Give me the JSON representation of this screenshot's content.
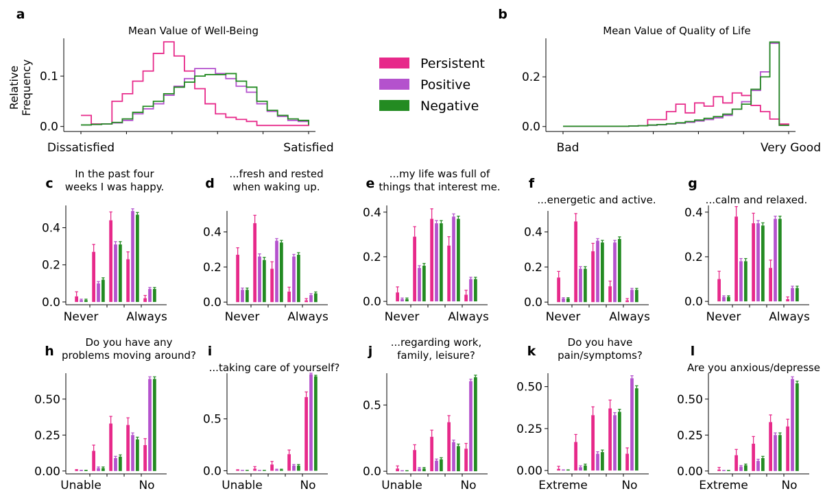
{
  "colors": {
    "Persistent": "#e7298a",
    "Positive": "#b452cd",
    "Negative": "#238b22"
  },
  "legend": {
    "items": [
      "Persistent",
      "Positive",
      "Negative"
    ]
  },
  "chart_data": [
    {
      "id": "a",
      "type": "line",
      "subtype": "step-histogram",
      "title": "Mean Value of Well-Being",
      "ylabel": "Relative\nFrequency",
      "xlabels": [
        "Dissatisfied",
        "Satisfied"
      ],
      "yticks": [
        "0.0",
        "0.1"
      ],
      "ylim": [
        -0.01,
        0.175
      ],
      "series": [
        {
          "name": "Persistent",
          "values": [
            0.022,
            0.005,
            0.005,
            0.05,
            0.065,
            0.09,
            0.11,
            0.145,
            0.168,
            0.14,
            0.11,
            0.075,
            0.045,
            0.025,
            0.018,
            0.014,
            0.01,
            0.002,
            0.002,
            0.002,
            0.002,
            0.002
          ]
        },
        {
          "name": "Positive",
          "values": [
            0.003,
            0.004,
            0.005,
            0.007,
            0.012,
            0.025,
            0.035,
            0.045,
            0.062,
            0.08,
            0.095,
            0.115,
            0.115,
            0.105,
            0.095,
            0.08,
            0.068,
            0.045,
            0.03,
            0.02,
            0.012,
            0.01
          ]
        },
        {
          "name": "Negative",
          "values": [
            0.003,
            0.004,
            0.005,
            0.008,
            0.015,
            0.028,
            0.04,
            0.05,
            0.065,
            0.078,
            0.088,
            0.1,
            0.103,
            0.103,
            0.105,
            0.09,
            0.078,
            0.05,
            0.032,
            0.022,
            0.015,
            0.012
          ]
        }
      ]
    },
    {
      "id": "b",
      "type": "line",
      "subtype": "step-histogram",
      "title": "Mean Value of Quality of Life",
      "xlabels": [
        "Bad",
        "Very Good"
      ],
      "yticks": [
        "0.0",
        "0.2"
      ],
      "ylim": [
        -0.02,
        0.355
      ],
      "series": [
        {
          "name": "Persistent",
          "values": [
            0.001,
            0.001,
            0.001,
            0.001,
            0.001,
            0.001,
            0.001,
            0.002,
            0.003,
            0.028,
            0.028,
            0.06,
            0.09,
            0.055,
            0.095,
            0.082,
            0.12,
            0.095,
            0.135,
            0.125,
            0.085,
            0.06,
            0.03,
            0.01
          ]
        },
        {
          "name": "Positive",
          "values": [
            0.001,
            0.001,
            0.001,
            0.001,
            0.001,
            0.001,
            0.001,
            0.002,
            0.003,
            0.005,
            0.007,
            0.01,
            0.013,
            0.017,
            0.022,
            0.028,
            0.035,
            0.045,
            0.07,
            0.1,
            0.145,
            0.22,
            0.335,
            0.005
          ]
        },
        {
          "name": "Negative",
          "values": [
            0.001,
            0.001,
            0.001,
            0.001,
            0.001,
            0.001,
            0.001,
            0.002,
            0.003,
            0.006,
            0.008,
            0.011,
            0.015,
            0.02,
            0.026,
            0.033,
            0.04,
            0.05,
            0.07,
            0.09,
            0.15,
            0.2,
            0.34,
            0.005
          ]
        }
      ]
    },
    {
      "id": "c",
      "type": "bar",
      "title": "In the past four\nweeks I was happy.",
      "xlabels": [
        "Never",
        "Always"
      ],
      "yticks": [
        0,
        0.2,
        0.4
      ],
      "ylim": [
        -0.015,
        0.52
      ],
      "series": [
        {
          "name": "Persistent",
          "values": [
            0.03,
            0.27,
            0.44,
            0.23,
            0.02
          ],
          "errors": [
            0.025,
            0.04,
            0.045,
            0.04,
            0.015
          ]
        },
        {
          "name": "Positive",
          "values": [
            0.01,
            0.1,
            0.31,
            0.49,
            0.07
          ],
          "errors": [
            0.005,
            0.01,
            0.015,
            0.012,
            0.008
          ]
        },
        {
          "name": "Negative",
          "values": [
            0.01,
            0.12,
            0.31,
            0.47,
            0.07
          ],
          "errors": [
            0.005,
            0.01,
            0.015,
            0.012,
            0.008
          ]
        }
      ]
    },
    {
      "id": "d",
      "type": "bar",
      "title": "...fresh and rested\nwhen waking up.",
      "xlabels": [
        "Never",
        "Always"
      ],
      "yticks": [
        0,
        0.2,
        0.4
      ],
      "ylim": [
        -0.015,
        0.52
      ],
      "series": [
        {
          "name": "Persistent",
          "values": [
            0.27,
            0.45,
            0.19,
            0.06,
            0.01
          ],
          "errors": [
            0.04,
            0.045,
            0.04,
            0.025,
            0.01
          ]
        },
        {
          "name": "Positive",
          "values": [
            0.07,
            0.26,
            0.35,
            0.26,
            0.04
          ],
          "errors": [
            0.01,
            0.015,
            0.012,
            0.012,
            0.008
          ]
        },
        {
          "name": "Negative",
          "values": [
            0.07,
            0.24,
            0.34,
            0.27,
            0.05
          ],
          "errors": [
            0.01,
            0.015,
            0.012,
            0.012,
            0.008
          ]
        }
      ]
    },
    {
      "id": "e",
      "type": "bar",
      "title": "...my life was full of\nthings that interest me.",
      "xlabels": [
        "Never",
        "Always"
      ],
      "yticks": [
        0,
        0.2,
        0.4
      ],
      "ylim": [
        -0.015,
        0.43
      ],
      "series": [
        {
          "name": "Persistent",
          "values": [
            0.04,
            0.29,
            0.37,
            0.25,
            0.03
          ],
          "errors": [
            0.025,
            0.045,
            0.045,
            0.04,
            0.02
          ]
        },
        {
          "name": "Positive",
          "values": [
            0.01,
            0.15,
            0.35,
            0.38,
            0.1
          ],
          "errors": [
            0.005,
            0.01,
            0.012,
            0.012,
            0.008
          ]
        },
        {
          "name": "Negative",
          "values": [
            0.01,
            0.16,
            0.35,
            0.37,
            0.1
          ],
          "errors": [
            0.005,
            0.01,
            0.012,
            0.012,
            0.008
          ]
        }
      ]
    },
    {
      "id": "f",
      "type": "bar",
      "title": "...energetic and active.",
      "xlabels": [
        "Never",
        "Always"
      ],
      "yticks": [
        0,
        0.2,
        0.4
      ],
      "ylim": [
        -0.015,
        0.52
      ],
      "series": [
        {
          "name": "Persistent",
          "values": [
            0.14,
            0.46,
            0.29,
            0.09,
            0.01
          ],
          "errors": [
            0.035,
            0.045,
            0.045,
            0.03,
            0.01
          ]
        },
        {
          "name": "Positive",
          "values": [
            0.02,
            0.19,
            0.35,
            0.34,
            0.07
          ],
          "errors": [
            0.005,
            0.012,
            0.012,
            0.012,
            0.008
          ]
        },
        {
          "name": "Negative",
          "values": [
            0.02,
            0.19,
            0.34,
            0.36,
            0.07
          ],
          "errors": [
            0.005,
            0.012,
            0.012,
            0.012,
            0.008
          ]
        }
      ]
    },
    {
      "id": "g",
      "type": "bar",
      "title": "...calm and relaxed.",
      "xlabels": [
        "Never",
        "Always"
      ],
      "yticks": [
        0,
        0.2,
        0.4
      ],
      "ylim": [
        -0.015,
        0.43
      ],
      "series": [
        {
          "name": "Persistent",
          "values": [
            0.1,
            0.38,
            0.35,
            0.15,
            0.01
          ],
          "errors": [
            0.035,
            0.045,
            0.045,
            0.035,
            0.01
          ]
        },
        {
          "name": "Positive",
          "values": [
            0.02,
            0.18,
            0.35,
            0.37,
            0.06
          ],
          "errors": [
            0.005,
            0.012,
            0.012,
            0.012,
            0.008
          ]
        },
        {
          "name": "Negative",
          "values": [
            0.02,
            0.18,
            0.34,
            0.37,
            0.06
          ],
          "errors": [
            0.005,
            0.012,
            0.012,
            0.012,
            0.008
          ]
        }
      ]
    },
    {
      "id": "h",
      "type": "bar",
      "title": "Do you have any\nproblems moving around?",
      "xlabels": [
        "Unable",
        "No"
      ],
      "yticks": [
        "0.00",
        "0.25",
        "0.50"
      ],
      "ylim": [
        -0.02,
        0.68
      ],
      "series": [
        {
          "name": "Persistent",
          "values": [
            0.0,
            0.14,
            0.33,
            0.32,
            0.18
          ],
          "errors": [
            0.01,
            0.04,
            0.05,
            0.05,
            0.045
          ]
        },
        {
          "name": "Positive",
          "values": [
            0.0,
            0.02,
            0.09,
            0.25,
            0.64
          ],
          "errors": [
            0.005,
            0.008,
            0.012,
            0.015,
            0.015
          ]
        },
        {
          "name": "Negative",
          "values": [
            0.0,
            0.02,
            0.1,
            0.22,
            0.64
          ],
          "errors": [
            0.005,
            0.008,
            0.012,
            0.015,
            0.015
          ]
        }
      ]
    },
    {
      "id": "i",
      "type": "bar",
      "title": "...taking care of yourself?",
      "xlabels": [
        "Unable",
        "No"
      ],
      "yticks": [
        "0.0",
        "0.5"
      ],
      "ylim": [
        -0.03,
        0.94
      ],
      "series": [
        {
          "name": "Persistent",
          "values": [
            0.0,
            0.02,
            0.06,
            0.16,
            0.71
          ],
          "errors": [
            0.01,
            0.02,
            0.03,
            0.04,
            0.05
          ]
        },
        {
          "name": "Positive",
          "values": [
            0.0,
            0.0,
            0.01,
            0.05,
            0.93
          ],
          "errors": [
            0.003,
            0.003,
            0.005,
            0.01,
            0.01
          ]
        },
        {
          "name": "Negative",
          "values": [
            0.0,
            0.0,
            0.01,
            0.05,
            0.91
          ],
          "errors": [
            0.003,
            0.003,
            0.005,
            0.01,
            0.01
          ]
        }
      ]
    },
    {
      "id": "j",
      "type": "bar",
      "title": "...regarding work,\nfamily, leisure?",
      "xlabels": [
        "Unable",
        "No"
      ],
      "yticks": [
        "0.0",
        "0.5"
      ],
      "ylim": [
        -0.02,
        0.74
      ],
      "series": [
        {
          "name": "Persistent",
          "values": [
            0.02,
            0.16,
            0.26,
            0.37,
            0.17
          ],
          "errors": [
            0.02,
            0.04,
            0.05,
            0.05,
            0.04
          ]
        },
        {
          "name": "Positive",
          "values": [
            0.0,
            0.02,
            0.08,
            0.22,
            0.68
          ],
          "errors": [
            0.004,
            0.008,
            0.012,
            0.015,
            0.015
          ]
        },
        {
          "name": "Negative",
          "values": [
            0.0,
            0.02,
            0.09,
            0.19,
            0.71
          ],
          "errors": [
            0.004,
            0.008,
            0.012,
            0.015,
            0.015
          ]
        }
      ]
    },
    {
      "id": "k",
      "type": "bar",
      "title": "Do you have\npain/symptoms?",
      "xlabels": [
        "Extreme",
        "No"
      ],
      "yticks": [
        "0.00",
        "0.25",
        "0.50"
      ],
      "ylim": [
        -0.02,
        0.58
      ],
      "series": [
        {
          "name": "Persistent",
          "values": [
            0.01,
            0.17,
            0.33,
            0.37,
            0.1
          ],
          "errors": [
            0.015,
            0.045,
            0.05,
            0.05,
            0.035
          ]
        },
        {
          "name": "Positive",
          "values": [
            0.0,
            0.02,
            0.1,
            0.33,
            0.55
          ],
          "errors": [
            0.004,
            0.008,
            0.012,
            0.015,
            0.015
          ]
        },
        {
          "name": "Negative",
          "values": [
            0.0,
            0.03,
            0.11,
            0.35,
            0.49
          ],
          "errors": [
            0.004,
            0.008,
            0.012,
            0.015,
            0.015
          ]
        }
      ]
    },
    {
      "id": "l",
      "type": "bar",
      "title": "Are you anxious/depresse",
      "xlabels": [
        "Extreme",
        "No"
      ],
      "yticks": [
        "0.00",
        "0.25",
        "0.50"
      ],
      "ylim": [
        -0.02,
        0.68
      ],
      "series": [
        {
          "name": "Persistent",
          "values": [
            0.01,
            0.11,
            0.19,
            0.34,
            0.31
          ],
          "errors": [
            0.015,
            0.04,
            0.05,
            0.05,
            0.05
          ]
        },
        {
          "name": "Positive",
          "values": [
            0.0,
            0.03,
            0.07,
            0.25,
            0.64
          ],
          "errors": [
            0.004,
            0.008,
            0.012,
            0.015,
            0.015
          ]
        },
        {
          "name": "Negative",
          "values": [
            0.0,
            0.04,
            0.09,
            0.25,
            0.61
          ],
          "errors": [
            0.004,
            0.008,
            0.012,
            0.015,
            0.015
          ]
        }
      ]
    }
  ]
}
